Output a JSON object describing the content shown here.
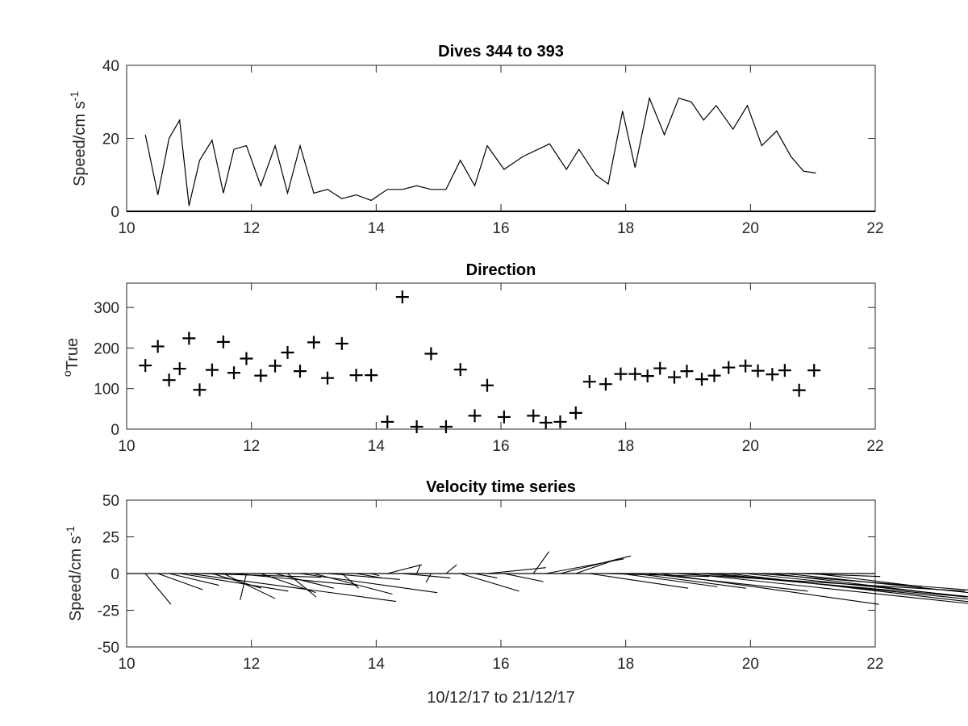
{
  "chart_data": [
    {
      "type": "line",
      "title": "Dives 344 to 393",
      "ylabel": "Speed/cm s",
      "ylabel_superscript": "-1",
      "xlim": [
        10,
        22
      ],
      "ylim": [
        0,
        40
      ],
      "xticks": [
        10,
        12,
        14,
        16,
        18,
        20,
        22
      ],
      "yticks": [
        0,
        20,
        40
      ],
      "grid": false,
      "x": [
        10.3,
        10.5,
        10.68,
        10.85,
        11.0,
        11.17,
        11.37,
        11.55,
        11.72,
        11.92,
        12.15,
        12.38,
        12.58,
        12.78,
        13.0,
        13.22,
        13.45,
        13.68,
        13.92,
        14.18,
        14.42,
        14.65,
        14.88,
        15.12,
        15.35,
        15.58,
        15.78,
        16.05,
        16.35,
        16.78,
        17.05,
        17.25,
        17.52,
        17.72,
        17.95,
        18.15,
        18.38,
        18.62,
        18.85,
        19.05,
        19.25,
        19.45,
        19.72,
        19.95,
        20.18,
        20.42,
        20.65,
        20.85,
        21.05
      ],
      "y": [
        21,
        4.5,
        20,
        25,
        1.5,
        14,
        19.5,
        5,
        17,
        18,
        7,
        18,
        5,
        18,
        5,
        6,
        3.5,
        4.5,
        3,
        6,
        6,
        7,
        6,
        6,
        14,
        7,
        18,
        11.5,
        15,
        18.5,
        11.5,
        17,
        10,
        7.5,
        27.5,
        12,
        31,
        21,
        31,
        30,
        25,
        29,
        22.5,
        29,
        18,
        22,
        15,
        11,
        10.5
      ],
      "baseline_y": 0
    },
    {
      "type": "scatter",
      "title": "Direction",
      "ylabel": "True",
      "ylabel_prefix": "o",
      "marker": "+",
      "xlim": [
        10,
        22
      ],
      "ylim": [
        0,
        360
      ],
      "xticks": [
        10,
        12,
        14,
        16,
        18,
        20,
        22
      ],
      "yticks": [
        0,
        100,
        200,
        300
      ],
      "grid": false,
      "x": [
        10.3,
        10.5,
        10.68,
        10.85,
        11.0,
        11.17,
        11.37,
        11.55,
        11.72,
        11.92,
        12.15,
        12.38,
        12.58,
        12.78,
        13.0,
        13.22,
        13.45,
        13.68,
        13.92,
        14.18,
        14.42,
        14.65,
        14.88,
        15.12,
        15.35,
        15.58,
        15.78,
        16.05,
        16.52,
        16.72,
        16.95,
        17.2,
        17.42,
        17.68,
        17.92,
        18.15,
        18.35,
        18.55,
        18.78,
        18.98,
        19.22,
        19.42,
        19.65,
        19.92,
        20.12,
        20.35,
        20.55,
        20.78,
        21.02
      ],
      "y": [
        157,
        204,
        121,
        149,
        224,
        97,
        146,
        215,
        139,
        174,
        132,
        156,
        189,
        143,
        214,
        126,
        211,
        133,
        133,
        18,
        326,
        6,
        186,
        6,
        147,
        33,
        108,
        30,
        33,
        16,
        18,
        40,
        117,
        111,
        136,
        136,
        131,
        150,
        128,
        143,
        123,
        132,
        152,
        156,
        144,
        135,
        145,
        96,
        145
      ]
    },
    {
      "type": "quiver",
      "title": "Velocity time series",
      "ylabel": "Speed/cm s",
      "ylabel_superscript": "-1",
      "xlabel": "10/12/17 to 21/12/17",
      "xlim": [
        10,
        22
      ],
      "ylim": [
        -50,
        50
      ],
      "xticks": [
        10,
        12,
        14,
        16,
        18,
        20,
        22
      ],
      "yticks": [
        -50,
        -25,
        0,
        25,
        50
      ],
      "ytick_labels": [
        "-50",
        "-25",
        "0",
        "25",
        "50"
      ],
      "grid": false,
      "baseline_y": 0,
      "x": [
        10.3,
        10.5,
        10.68,
        10.85,
        11.0,
        11.17,
        11.37,
        11.55,
        11.72,
        11.92,
        12.15,
        12.38,
        12.58,
        12.78,
        13.0,
        13.22,
        13.45,
        13.68,
        13.92,
        14.18,
        14.42,
        14.65,
        14.88,
        15.12,
        15.35,
        15.58,
        15.78,
        16.05,
        16.52,
        16.72,
        16.95,
        17.2,
        17.42,
        17.68,
        17.92,
        18.15,
        18.35,
        18.55,
        18.78,
        18.98,
        19.22,
        19.42,
        19.65,
        19.92,
        20.12,
        20.35,
        20.55,
        20.78,
        21.02
      ],
      "u": [
        0.41,
        0.72,
        0.8,
        1.74,
        3.32,
        1.95,
        0.79,
        0.83,
        1.98,
        -0.1,
        0.88,
        0.94,
        0.46,
        2.2,
        1.26,
        1.16,
        0.27,
        0.41,
        0.13,
        0.55,
        0.77,
        0.06,
        -0.08,
        0.17,
        0.94,
        0.36,
        0.94,
        0.63,
        0.25,
        1.25,
        1.13,
        0.68,
        1.58,
        1.66,
        1.55,
        1.78,
        2.57,
        3.51,
        4.66,
        4.64,
        4.26,
        4.2,
        4.41,
        4.54,
        3.92,
        3.1,
        3.85,
        1.3,
        1.73
      ],
      "v": [
        -21,
        -11,
        -8,
        -12,
        -19,
        -2.5,
        -10,
        -17,
        -8,
        -18,
        -13,
        -10,
        -16,
        -13,
        -14,
        -4,
        -10,
        -3,
        -1.5,
        6,
        -3,
        6,
        -6,
        6,
        -12,
        -3,
        4,
        -5.5,
        15,
        10,
        12,
        10,
        -10,
        -2,
        -9,
        -10,
        -12,
        -21,
        -12,
        -21,
        -16,
        -18,
        -22,
        -20,
        -13,
        -16,
        -17,
        -2,
        -9
      ]
    }
  ]
}
